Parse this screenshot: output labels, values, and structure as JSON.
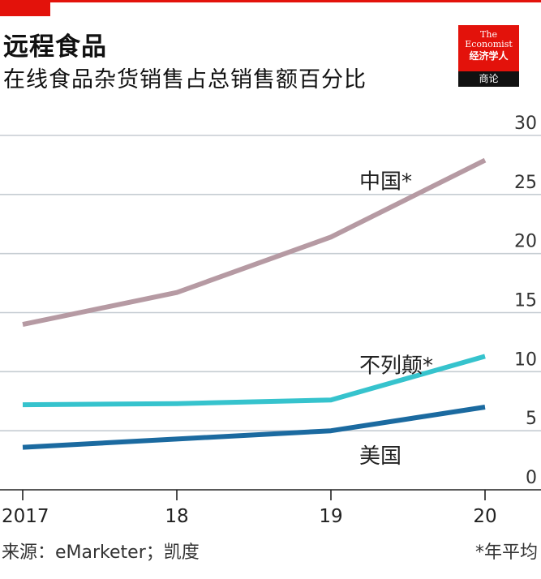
{
  "header": {
    "title": "远程食品",
    "subtitle": "在线食品杂货销售占总销售额百分比"
  },
  "logo": {
    "line1": "The",
    "line2": "Economist",
    "line3": "经济学人",
    "bottom": "商论"
  },
  "footer": {
    "source": "来源：eMarketer；凯度",
    "note": "*年平均"
  },
  "colors": {
    "china": "#b69aa3",
    "netherlands": "#36c3cd",
    "usa": "#1b6aa0",
    "accent": "#e3120b"
  },
  "chart_data": {
    "type": "line",
    "title": "远程食品",
    "subtitle": "在线食品杂货销售占总销售额百分比",
    "x": [
      2017,
      2018,
      2019,
      2020
    ],
    "x_tick_labels": [
      "2017",
      "18",
      "19",
      "20"
    ],
    "y_tick_labels": [
      "0",
      "5",
      "10",
      "15",
      "20",
      "25",
      "30"
    ],
    "ylim": [
      0,
      30
    ],
    "grid": true,
    "y_axis_side": "right",
    "series": [
      {
        "name": "中国*",
        "color": "#b69aa3",
        "values": [
          14.0,
          16.7,
          21.4,
          27.9
        ]
      },
      {
        "name": "不列颠*",
        "color": "#36c3cd",
        "values": [
          7.2,
          7.3,
          7.6,
          11.3
        ]
      },
      {
        "name": "美国",
        "color": "#1b6aa0",
        "values": [
          3.6,
          4.3,
          5.0,
          7.0
        ]
      }
    ]
  }
}
